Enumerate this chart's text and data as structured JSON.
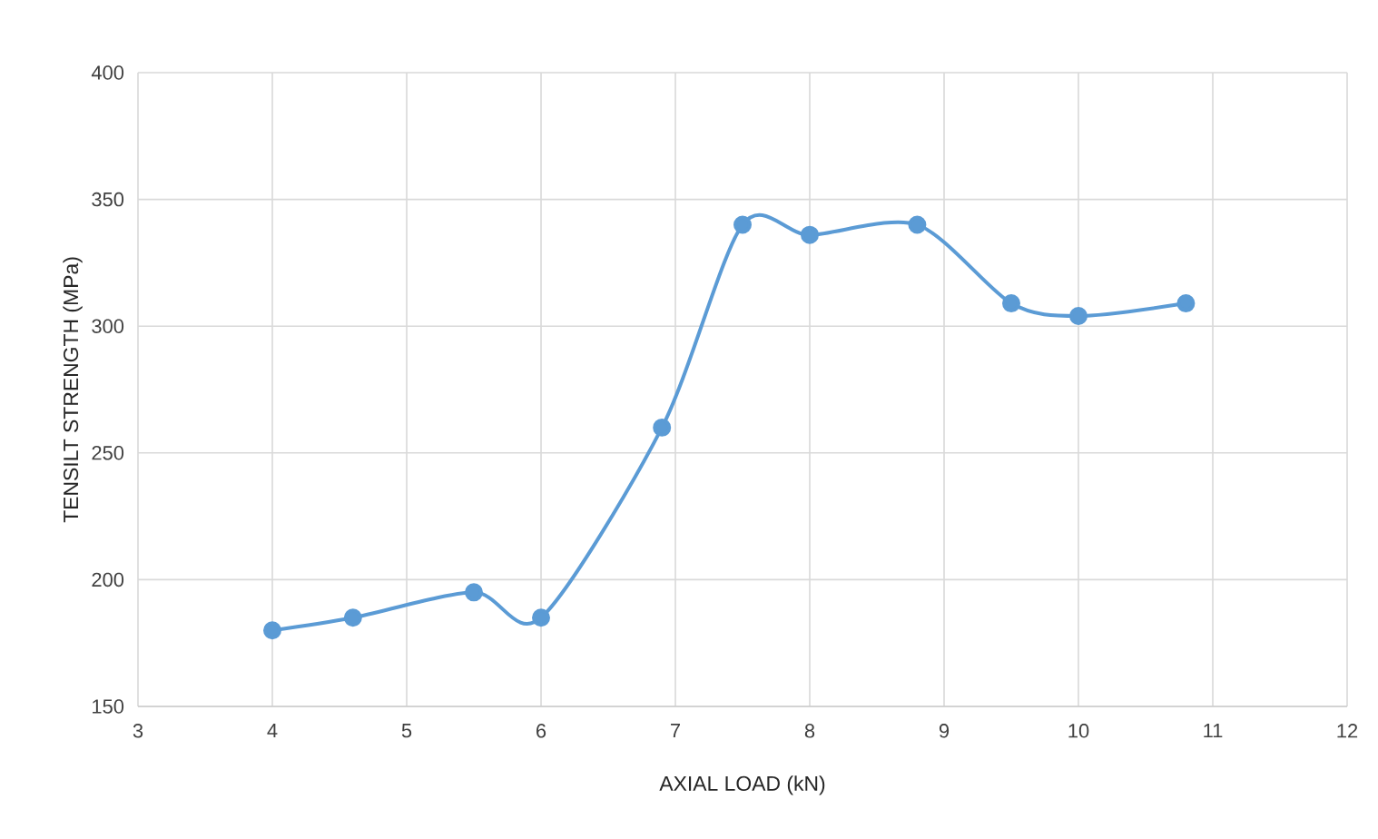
{
  "chart_data": {
    "type": "line",
    "xlabel": "AXIAL LOAD (kN)",
    "ylabel": "TENSILT STRENGTH (MPa)",
    "x": [
      4,
      4.6,
      5.5,
      6,
      6.9,
      7.5,
      8,
      8.8,
      9.5,
      10,
      10.8
    ],
    "series": [
      {
        "color": "#5b9bd5",
        "values": [
          180,
          185,
          195,
          185,
          260,
          340,
          336,
          340,
          309,
          304,
          309
        ]
      }
    ],
    "xlim": [
      3,
      12
    ],
    "xticks": [
      3,
      4,
      5,
      6,
      7,
      8,
      9,
      10,
      11,
      12
    ],
    "ylim": [
      150,
      400
    ],
    "yticks": [
      150,
      200,
      250,
      300,
      350,
      400
    ],
    "grid": true,
    "marker": "circle",
    "line_style": "solid"
  }
}
